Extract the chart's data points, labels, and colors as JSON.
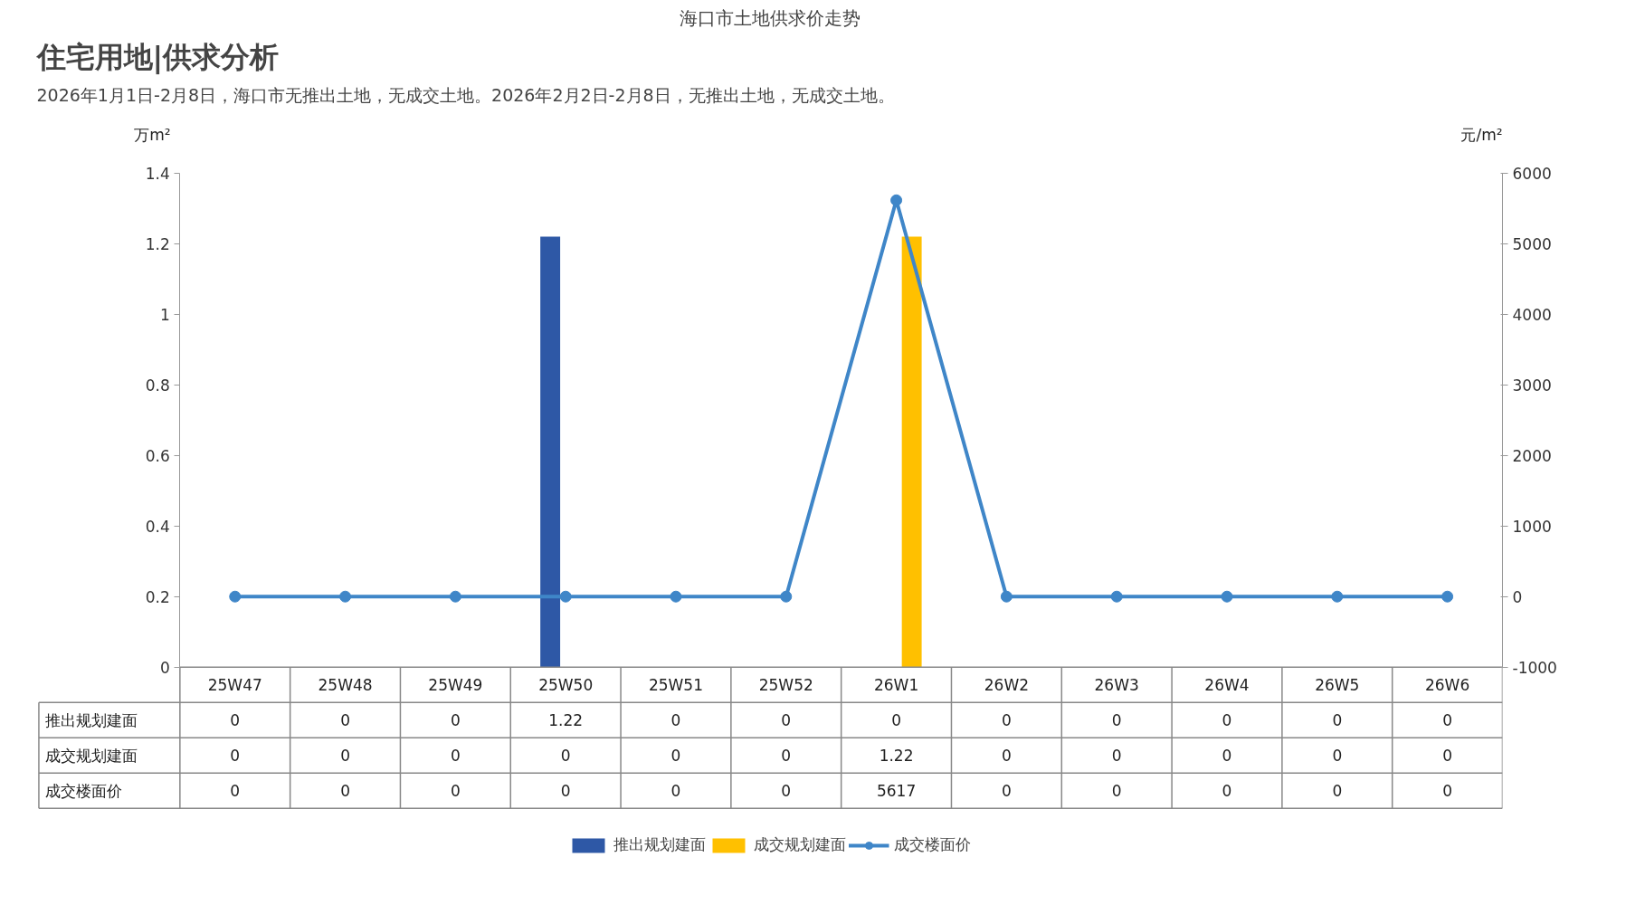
{
  "chart_data": {
    "type": "bar",
    "title": "海口市土地供求价走势",
    "annotations": [
      "住宅用地|供求分析",
      "2026年1月1日-2月8日，海口市无推出土地，无成交土地。2026年2月2日-2月8日，无推出土地，无成交土地。"
    ],
    "ylabel": "万m²",
    "y2label": "元/m²",
    "categories": [
      "25W47",
      "25W48",
      "25W49",
      "25W50",
      "25W51",
      "25W52",
      "26W1",
      "26W2",
      "26W3",
      "26W4",
      "26W5",
      "26W6"
    ],
    "series": [
      {
        "name": "推出规划建面",
        "color": "#2e58a6",
        "values": [
          0,
          0,
          0,
          1.22,
          0,
          0,
          0,
          0,
          0,
          0,
          0,
          0
        ]
      },
      {
        "name": "成交规划建面",
        "color": "#ffc000",
        "values": [
          0,
          0,
          0,
          0,
          0,
          0,
          1.22,
          0,
          0,
          0,
          0,
          0
        ]
      },
      {
        "name": "成交楼面价",
        "type": "line",
        "axis": "y2",
        "color": "#3f86c8",
        "values": [
          0,
          0,
          0,
          0,
          0,
          0,
          5617,
          0,
          0,
          0,
          0,
          0
        ]
      }
    ],
    "ylim": [
      0,
      1.4
    ],
    "yticks": [
      0,
      0.2,
      0.4,
      0.6,
      0.8,
      1,
      1.2,
      1.4
    ],
    "y2lim": [
      -1000,
      6000
    ],
    "y2ticks": [
      -1000,
      0,
      1000,
      2000,
      3000,
      4000,
      5000,
      6000
    ],
    "marker": "circle",
    "line_style": "solid",
    "grid": false,
    "legend": "bottom",
    "data_labels": true
  }
}
